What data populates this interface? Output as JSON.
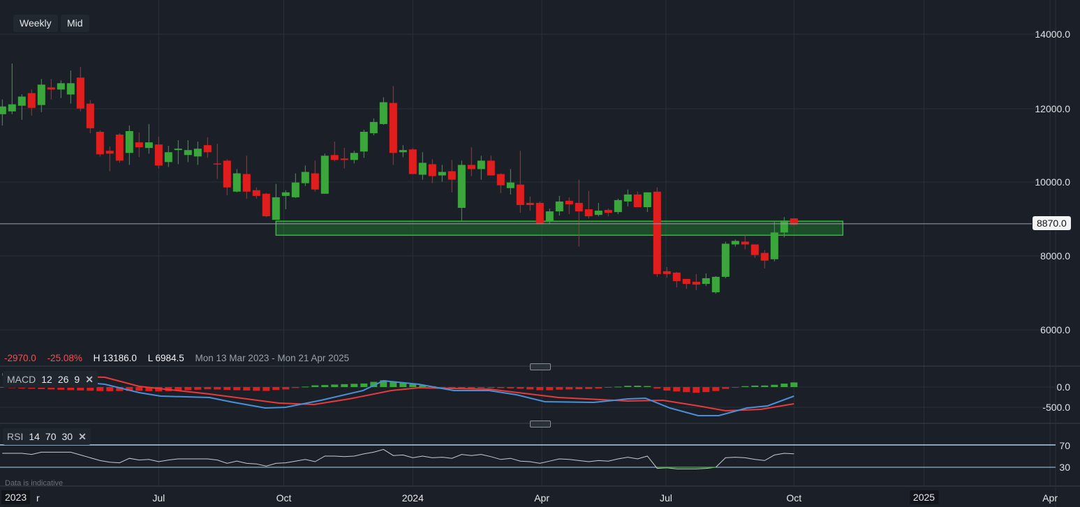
{
  "toolbar": {
    "interval_label": "Weekly",
    "price_type_label": "Mid"
  },
  "info_bar": {
    "change": "-2970.0",
    "change_pct": "-25.08%",
    "high": "H 13186.0",
    "low": "L 6984.5",
    "range": "Mon 13 Mar 2023 - Mon 21 Apr 2025"
  },
  "current_price": "8870.0",
  "footer_note": "Data is indicative",
  "colors": {
    "up": "#3aa63c",
    "down": "#e01e1e",
    "macd": "#4a90d9",
    "signal": "#e83a3a",
    "rsi": "#c8ccd2",
    "rsi_bands": "#a8d0f0",
    "zone": "#22c522"
  },
  "chart_data": [
    {
      "type": "candlestick",
      "title": "Weekly Mid",
      "y_ticks": [
        "14000.0",
        "12000.0",
        "10000.0",
        "8000.0",
        "6000.0"
      ],
      "ylim": [
        5500,
        14700
      ],
      "x_ticks": [
        {
          "label": "2023",
          "week": -1,
          "year": true
        },
        {
          "label": "r",
          "week": 0.7
        },
        {
          "label": "Jul",
          "week": 16
        },
        {
          "label": "Oct",
          "week": 28.8
        },
        {
          "label": "2024",
          "week": 42
        },
        {
          "label": "Apr",
          "week": 55.2
        },
        {
          "label": "Jul",
          "week": 67.9
        },
        {
          "label": "Oct",
          "week": 81
        },
        {
          "label": "2025",
          "week": 94.3,
          "year": true
        },
        {
          "label": "Apr",
          "week": 107.2
        }
      ],
      "support_zone": {
        "start_week": 28,
        "end_week": 86,
        "low": 8560,
        "high": 8940
      },
      "current_price_value": 8870,
      "ohlc": [
        [
          11835,
          12235,
          11530,
          12044
        ],
        [
          11911,
          13206,
          11835,
          12102
        ],
        [
          12064,
          12375,
          11683,
          12311
        ],
        [
          12406,
          12502,
          11797,
          12006
        ],
        [
          12083,
          12787,
          11892,
          12635
        ],
        [
          12559,
          12787,
          12235,
          12502
        ],
        [
          12502,
          12749,
          12273,
          12673
        ],
        [
          12368,
          13016,
          12121,
          12673
        ],
        [
          12825,
          13111,
          11911,
          11987
        ],
        [
          12121,
          12216,
          11321,
          11454
        ],
        [
          11359,
          11397,
          10692,
          10749
        ],
        [
          10845,
          10959,
          10292,
          10768
        ],
        [
          11283,
          11321,
          10521,
          10578
        ],
        [
          10787,
          11530,
          10464,
          11378
        ],
        [
          11073,
          11340,
          10673,
          10940
        ],
        [
          10921,
          11568,
          10768,
          11073
        ],
        [
          11016,
          11226,
          10368,
          10445
        ],
        [
          10540,
          10978,
          10407,
          10806
        ],
        [
          10864,
          11130,
          10483,
          10902
        ],
        [
          10730,
          11130,
          10540,
          10864
        ],
        [
          10692,
          11092,
          10464,
          10902
        ],
        [
          10997,
          11207,
          10654,
          10806
        ],
        [
          10502,
          11035,
          10083,
          10489
        ],
        [
          10578,
          10616,
          9643,
          9854
        ],
        [
          9740,
          10349,
          9721,
          10235
        ],
        [
          10216,
          10711,
          9549,
          9740
        ],
        [
          9778,
          9854,
          9549,
          9625
        ],
        [
          9683,
          9702,
          9054,
          9073
        ],
        [
          8978,
          9949,
          8978,
          9587
        ],
        [
          9625,
          9778,
          9264,
          9721
        ],
        [
          9587,
          10235,
          9568,
          9987
        ],
        [
          9968,
          10445,
          9892,
          10273
        ],
        [
          10235,
          10578,
          9740,
          9797
        ],
        [
          9683,
          10768,
          9683,
          10711
        ],
        [
          10730,
          11092,
          10559,
          10597
        ],
        [
          10635,
          10921,
          10368,
          10597
        ],
        [
          10597,
          10845,
          10502,
          10787
        ],
        [
          10825,
          11416,
          10654,
          11359
        ],
        [
          11321,
          11721,
          11264,
          11625
        ],
        [
          11568,
          12292,
          11549,
          12159
        ],
        [
          12140,
          12597,
          10464,
          10787
        ],
        [
          10806,
          10997,
          10673,
          10864
        ],
        [
          10882,
          10914,
          10216,
          10216
        ],
        [
          10197,
          10806,
          10063,
          10520
        ],
        [
          10482,
          10616,
          9968,
          10159
        ],
        [
          10178,
          10463,
          10006,
          10273
        ],
        [
          10292,
          10597,
          9720,
          10063
        ],
        [
          9301,
          10578,
          8940,
          10463
        ],
        [
          10463,
          10939,
          10159,
          10349
        ],
        [
          10349,
          10711,
          10063,
          10578
        ],
        [
          10578,
          10711,
          10178,
          10178
        ],
        [
          10216,
          10235,
          9701,
          9911
        ],
        [
          9835,
          10349,
          9663,
          9987
        ],
        [
          9930,
          10844,
          9168,
          9378
        ],
        [
          9435,
          9606,
          9225,
          9378
        ],
        [
          9435,
          9473,
          8863,
          8863
        ],
        [
          8940,
          9282,
          8863,
          9206
        ],
        [
          9206,
          9625,
          9092,
          9473
        ],
        [
          9492,
          9587,
          9130,
          9397
        ],
        [
          9435,
          10063,
          8254,
          9206
        ],
        [
          9263,
          9759,
          9016,
          9073
        ],
        [
          9111,
          9435,
          9073,
          9225
        ],
        [
          9244,
          9282,
          9073,
          9168
        ],
        [
          9187,
          9549,
          9130,
          9511
        ],
        [
          9473,
          9797,
          9339,
          9663
        ],
        [
          9663,
          9740,
          9320,
          9320
        ],
        [
          9320,
          9720,
          9187,
          9720
        ],
        [
          9739,
          9854,
          7435,
          7511
        ],
        [
          7587,
          7701,
          7416,
          7511
        ],
        [
          7549,
          7568,
          7149,
          7320
        ],
        [
          7378,
          7378,
          7111,
          7244
        ],
        [
          7301,
          7511,
          7073,
          7225
        ],
        [
          7244,
          7530,
          7187,
          7397
        ],
        [
          7016,
          7454,
          6978,
          7435
        ],
        [
          7435,
          8387,
          7397,
          8330
        ],
        [
          8311,
          8444,
          8254,
          8406
        ],
        [
          8387,
          8558,
          8178,
          8311
        ],
        [
          8311,
          8311,
          7949,
          8025
        ],
        [
          8082,
          8158,
          7663,
          7873
        ],
        [
          7911,
          8940,
          7854,
          8635
        ],
        [
          8635,
          9054,
          8501,
          8959
        ],
        [
          9016,
          9016,
          8825,
          8844
        ]
      ]
    },
    {
      "type": "line",
      "title": "MACD",
      "legend": {
        "name": "MACD",
        "params": [
          "12",
          "26",
          "9"
        ]
      },
      "y_ticks": [
        "0.0",
        "-500.0"
      ],
      "macd_points": [
        [
          0,
          300
        ],
        [
          10.5,
          69
        ],
        [
          14,
          -138
        ],
        [
          16.2,
          -224
        ],
        [
          21.2,
          -259
        ],
        [
          23.3,
          -362
        ],
        [
          26.9,
          -517
        ],
        [
          29,
          -500
        ],
        [
          32.6,
          -328
        ],
        [
          36.9,
          -86
        ],
        [
          39,
          155
        ],
        [
          42.6,
          69
        ],
        [
          46.2,
          -86
        ],
        [
          49.8,
          -86
        ],
        [
          52.6,
          -190
        ],
        [
          55.5,
          -362
        ],
        [
          60.5,
          -379
        ],
        [
          64,
          -293
        ],
        [
          65.8,
          -276
        ],
        [
          68.3,
          -517
        ],
        [
          71.2,
          -707
        ],
        [
          73.3,
          -707
        ],
        [
          76.2,
          -517
        ],
        [
          78.3,
          -465
        ],
        [
          81,
          -224
        ]
      ],
      "signal_points": [
        [
          0,
          330
        ],
        [
          10.5,
          241
        ],
        [
          14,
          17
        ],
        [
          21.2,
          -172
        ],
        [
          28.3,
          -397
        ],
        [
          31.9,
          -431
        ],
        [
          35.5,
          -293
        ],
        [
          39.8,
          -86
        ],
        [
          42.6,
          -17
        ],
        [
          49.8,
          -52
        ],
        [
          56.9,
          -259
        ],
        [
          64,
          -345
        ],
        [
          67.6,
          -328
        ],
        [
          71.2,
          -465
        ],
        [
          74,
          -586
        ],
        [
          77.6,
          -552
        ],
        [
          81,
          -414
        ]
      ]
    },
    {
      "type": "line",
      "title": "RSI",
      "legend": {
        "name": "RSI",
        "params": [
          "14",
          "70",
          "30"
        ]
      },
      "y_ticks": [
        "70",
        "30"
      ],
      "values": [
        55,
        55,
        55,
        53,
        57,
        57,
        57,
        57,
        52,
        47,
        42,
        39,
        38,
        46,
        43,
        44,
        40,
        43,
        45,
        45,
        45,
        45,
        43,
        37,
        41,
        37,
        36,
        32,
        37,
        38,
        41,
        44,
        40,
        50,
        50,
        49,
        50,
        54,
        57,
        62,
        51,
        52,
        47,
        50,
        47,
        48,
        46,
        53,
        51,
        53,
        49,
        44,
        46,
        41,
        40,
        37,
        41,
        45,
        44,
        42,
        40,
        42,
        41,
        45,
        48,
        45,
        50,
        28,
        29,
        27,
        27,
        27,
        28,
        30,
        47,
        48,
        47,
        44,
        42,
        52,
        55,
        54
      ]
    }
  ]
}
